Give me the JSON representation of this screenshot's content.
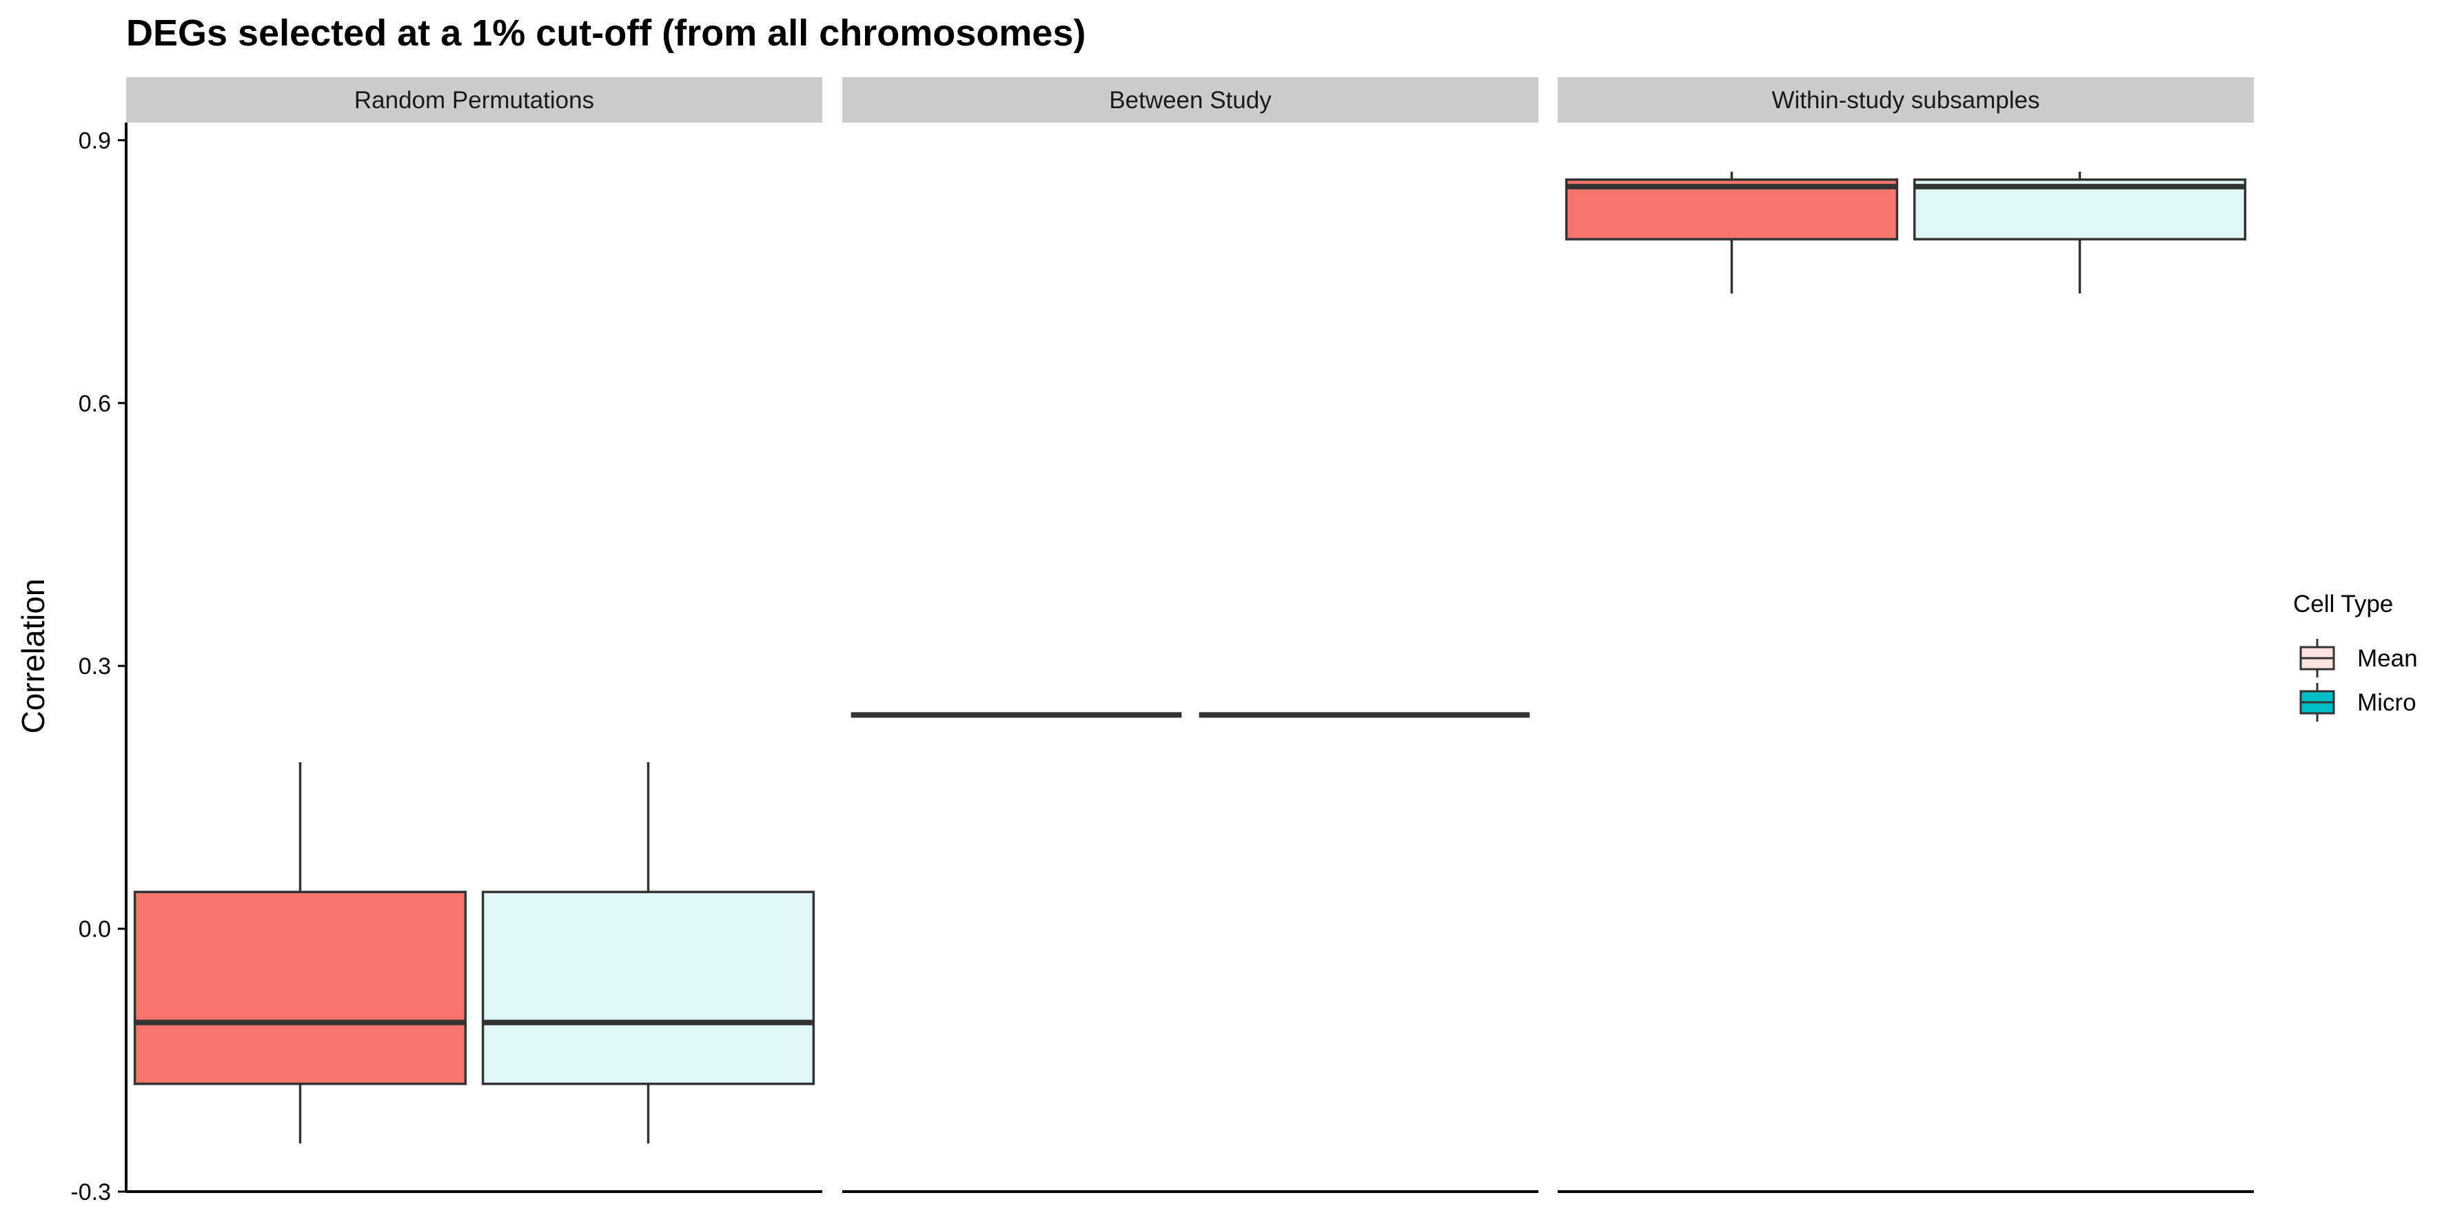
{
  "chart_data": {
    "type": "boxplot",
    "title": "DEGs selected at a 1% cut-off (from all chromosomes)",
    "ylabel": "Correlation",
    "xlabel": "",
    "ylim": [
      -0.3,
      0.92
    ],
    "yticks": [
      -0.3,
      0.0,
      0.3,
      0.6,
      0.9
    ],
    "ytick_labels": [
      "-0.3",
      "0.0",
      "0.3",
      "0.6",
      "0.9"
    ],
    "grid": false,
    "legend": {
      "title": "Cell Type",
      "position": "right",
      "entries": [
        {
          "name": "Mean",
          "color": "#fbe3df"
        },
        {
          "name": "Micro",
          "color": "#00bfc4"
        }
      ]
    },
    "facets": [
      {
        "label": "Random Permutations",
        "boxes": [
          {
            "group": "Mean",
            "fill": "#f8766d",
            "min": -0.245,
            "q1": -0.177,
            "median": -0.107,
            "q3": 0.042,
            "max": 0.19
          },
          {
            "group": "Micro",
            "fill": "#e0f6f7",
            "min": -0.245,
            "q1": -0.177,
            "median": -0.107,
            "q3": 0.042,
            "max": 0.19
          }
        ]
      },
      {
        "label": "Between Study",
        "boxes": [
          {
            "group": "Mean",
            "fill": "#f8766d",
            "min": 0.244,
            "q1": 0.244,
            "median": 0.244,
            "q3": 0.244,
            "max": 0.244
          },
          {
            "group": "Micro",
            "fill": "#e0f6f7",
            "min": 0.244,
            "q1": 0.244,
            "median": 0.244,
            "q3": 0.244,
            "max": 0.244
          }
        ]
      },
      {
        "label": "Within-study subsamples",
        "boxes": [
          {
            "group": "Mean",
            "fill": "#f8766d",
            "min": 0.725,
            "q1": 0.787,
            "median": 0.847,
            "q3": 0.855,
            "max": 0.864
          },
          {
            "group": "Micro",
            "fill": "#e0f6f7",
            "min": 0.725,
            "q1": 0.787,
            "median": 0.847,
            "q3": 0.855,
            "max": 0.864
          }
        ]
      }
    ]
  }
}
